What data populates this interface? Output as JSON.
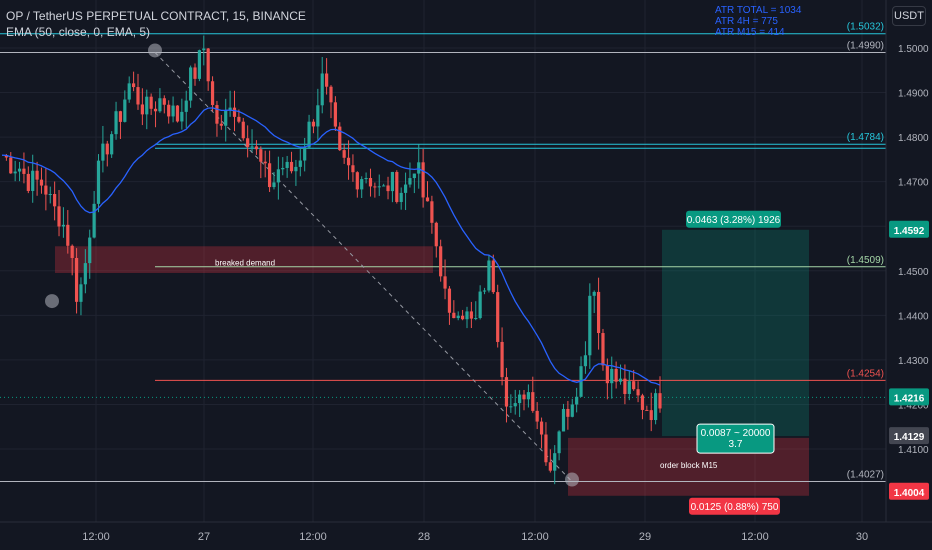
{
  "header": {
    "title": "OP / TetherUS PERPETUAL CONTRACT, 15, BINANCE",
    "indicator": "EMA (50, close, 0, EMA, 5)"
  },
  "atr": {
    "total": "ATR TOTAL = 1034",
    "h4": "ATR 4H = 775",
    "m15": "ATR M15 = 414"
  },
  "unit_label": "USDT",
  "colors": {
    "background": "#131722",
    "up": "#26a69a",
    "down": "#ef5350",
    "ema": "#2962ff",
    "teal_level": "#26c6da",
    "green_level": "#a5d6a7",
    "red_level": "#ef5350",
    "grey_level": "#b2b5be"
  },
  "chart_data": {
    "type": "candlestick",
    "x_ticks": [
      "12:00",
      "27",
      "12:00",
      "28",
      "12:00",
      "29",
      "12:00",
      "30"
    ],
    "y_ticks": [
      "1.5000",
      "1.4900",
      "1.4800",
      "1.4700",
      "1.4600",
      "1.4500",
      "1.4400",
      "1.4300",
      "1.4200",
      "1.4100"
    ],
    "ylim": [
      1.396,
      1.5065
    ],
    "levels": [
      {
        "label": "(1.5032)",
        "value": 1.5032,
        "color": "teal"
      },
      {
        "label": "(1.4990)",
        "value": 1.499,
        "color": "grey"
      },
      {
        "label": "(1.4784)",
        "value": 1.4784,
        "color": "teal"
      },
      {
        "label": "(1.4509)",
        "value": 1.4509,
        "color": "green"
      },
      {
        "label": "(1.4254)",
        "value": 1.4254,
        "color": "red"
      },
      {
        "label": "(1.4027)",
        "value": 1.4027,
        "color": "grey"
      }
    ],
    "price_tags": [
      {
        "label": "1.4592",
        "value": 1.4592,
        "color": "#089981"
      },
      {
        "label": "1.4216",
        "value": 1.4216,
        "color": "#089981"
      },
      {
        "label": "1.4129",
        "value": 1.4129,
        "color": "#434651"
      },
      {
        "label": "1.4004",
        "value": 1.4004,
        "color": "#f23645"
      }
    ],
    "zones": [
      {
        "label": "breaked demand",
        "top": 1.4555,
        "bottom": 1.4495
      },
      {
        "label": "order block M15",
        "top": 1.4125,
        "bottom": 1.4027
      }
    ],
    "position": {
      "target_label": "0.0463 (3.28%) 1926",
      "entry_label_line1": "0.0087 ~ 20000",
      "entry_label_line2": "3.7",
      "stop_label": "0.0125 (0.88%) 750",
      "target": 1.4592,
      "entry": 1.4129,
      "stop": 1.4004
    },
    "last_price": 1.4216,
    "trend_line": {
      "from": 1.499,
      "to": 1.4027
    },
    "key_prices": [
      [
        1.476,
        1.4742,
        1.4735,
        1.4705,
        1.47,
        1.4695,
        1.464,
        1.462,
        1.456,
        1.443,
        1.453,
        1.469,
        1.476,
        1.481,
        1.485,
        1.492,
        1.489,
        1.486,
        1.487,
        1.489,
        1.486,
        1.484,
        1.492,
        1.495,
        1.5005,
        1.486,
        1.481,
        1.489,
        1.484,
        1.481,
        1.477,
        1.472,
        1.469,
        1.474,
        1.472,
        1.474,
        1.48,
        1.485,
        1.493,
        1.485,
        1.475,
        1.473,
        1.471,
        1.472,
        1.47,
        1.467,
        1.47,
        1.468,
        1.469,
        1.475,
        1.466,
        1.46,
        1.451,
        1.438,
        1.443,
        1.44,
        1.437,
        1.446,
        1.452,
        1.432,
        1.42,
        1.418,
        1.424,
        1.421,
        1.413,
        1.406,
        1.415,
        1.419,
        1.424,
        1.43,
        1.452,
        1.43,
        1.427,
        1.425,
        1.423,
        1.422,
        1.42,
        1.419,
        1.4216
      ]
    ]
  }
}
